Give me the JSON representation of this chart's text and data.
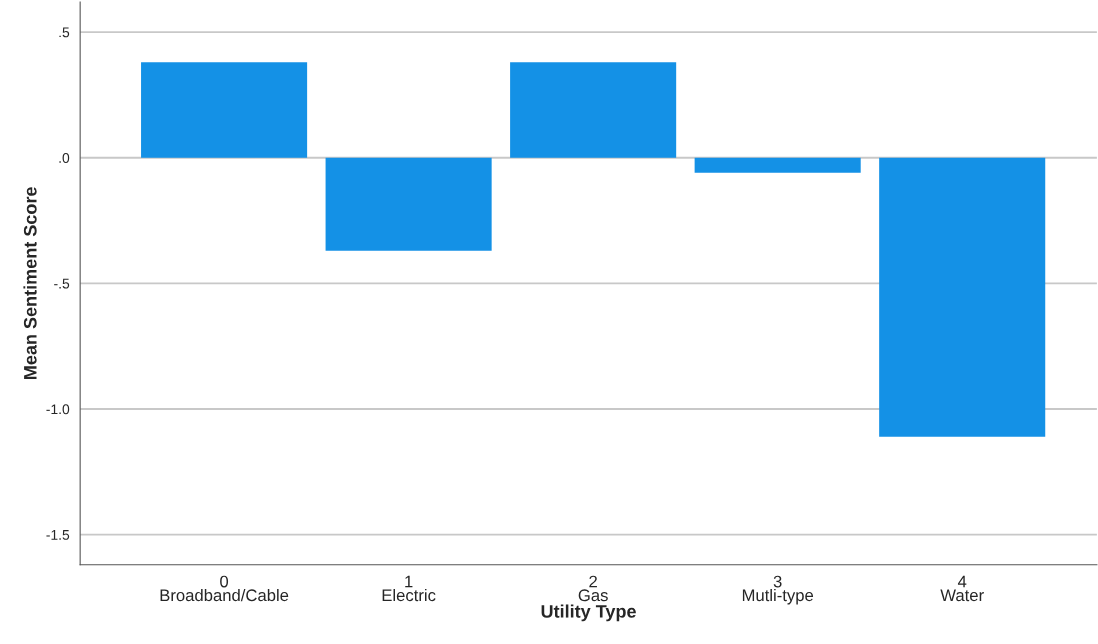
{
  "chart_data": {
    "type": "bar",
    "categories": [
      "0\nBroadband/Cable",
      "1\nElectric",
      "2\nGas",
      "3\nMutli-type",
      "4\nWater"
    ],
    "values": [
      0.38,
      -0.37,
      0.38,
      -0.06,
      -1.11
    ],
    "color": "#1491e6",
    "xlabel": "Utility Type",
    "ylabel": "Mean Sentiment Score",
    "ylim": [
      -1.62,
      0.62
    ],
    "yticks": [
      {
        "value": 0.5,
        "label": ".5"
      },
      {
        "value": 0.0,
        "label": ".0"
      },
      {
        "value": -0.5,
        "label": "-.5"
      },
      {
        "value": -1.0,
        "label": "-1.0"
      },
      {
        "value": -1.5,
        "label": "-1.5"
      }
    ],
    "grid": "y"
  }
}
